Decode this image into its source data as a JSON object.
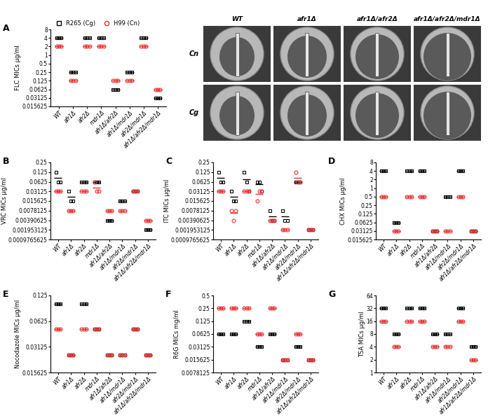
{
  "chart_data": [
    {
      "panel": "A",
      "type": "scatter",
      "y_label": "FLC MICs µg/ml",
      "log": "y",
      "legend": "upper left",
      "categories": [
        "WT",
        "afr1Δ",
        "afr2Δ",
        "mdr1Δ",
        "afr1Δ/afr2Δ",
        "afr1Δ/mdr1Δ",
        "afr2Δ/mdr1Δ",
        "afr1Δ/afr2Δ/mdr1Δ"
      ],
      "ylim": [
        0.015625,
        8
      ],
      "yticks": [
        0.015625,
        0.03125,
        0.0625,
        0.125,
        0.25,
        0.5,
        1,
        2,
        4,
        8
      ],
      "series": [
        {
          "name": "R265 (Cg)",
          "color": "#000000",
          "marker": "square",
          "values": [
            [
              4,
              4,
              4
            ],
            [
              0.25,
              0.25,
              0.25
            ],
            [
              4,
              4,
              4
            ],
            [
              4,
              4,
              4
            ],
            [
              0.0625,
              0.0625,
              0.0625
            ],
            [
              0.25,
              0.25,
              0.25
            ],
            [
              4,
              4,
              4
            ],
            [
              0.03125,
              0.03125,
              0.03125
            ]
          ]
        },
        {
          "name": "H99 (Cn)",
          "color": "#e8312f",
          "marker": "circle",
          "values": [
            [
              2,
              2,
              2
            ],
            [
              0.125,
              0.125,
              0.125
            ],
            [
              2,
              2,
              2
            ],
            [
              2,
              2,
              2
            ],
            [
              0.125,
              0.125,
              0.125
            ],
            [
              0.125,
              0.125,
              0.125
            ],
            [
              2,
              2,
              2
            ],
            [
              0.0625,
              0.0625,
              0.0625
            ]
          ]
        }
      ]
    },
    {
      "panel": "B",
      "type": "scatter",
      "y_label": "VRC MICs µg/ml",
      "log": "y",
      "categories": [
        "WT",
        "afr1Δ",
        "afr2Δ",
        "mdr1Δ",
        "afr1Δ/afr2Δ",
        "afr1Δ/mdr1Δ",
        "afr2Δ/mdr1Δ",
        "afr1Δ/afr2Δ/mdr1Δ"
      ],
      "ylim": [
        0.0009765625,
        0.25
      ],
      "yticks": [
        0.0009765625,
        0.001953125,
        0.00390625,
        0.0078125,
        0.015625,
        0.03125,
        0.0625,
        0.125,
        0.25
      ],
      "series": [
        {
          "color": "#000000",
          "marker": "square",
          "values": [
            [
              0.125,
              0.0625,
              0.0625
            ],
            [
              0.03125,
              0.015625,
              0.015625
            ],
            [
              0.0625,
              0.0625,
              0.0625
            ],
            [
              0.0625,
              0.0625,
              0.0625
            ],
            [
              0.00390625,
              0.00390625,
              0.00390625
            ],
            [
              0.015625,
              0.015625,
              0.015625
            ],
            [
              0.03125,
              0.03125,
              0.03125
            ],
            [
              0.001953125,
              0.001953125,
              0.001953125
            ]
          ]
        },
        {
          "color": "#e8312f",
          "marker": "circle",
          "values": [
            [
              0.03125,
              0.03125,
              0.03125
            ],
            [
              0.0078125,
              0.0078125,
              0.0078125
            ],
            [
              0.03125,
              0.03125,
              0.03125
            ],
            [
              0.0625,
              0.03125,
              0.03125
            ],
            [
              0.0078125,
              0.0078125,
              0.0078125
            ],
            [
              0.0078125,
              0.0078125,
              0.0078125
            ],
            [
              0.03125,
              0.03125,
              0.03125
            ],
            [
              0.00390625,
              0.00390625,
              0.00390625
            ]
          ]
        }
      ]
    },
    {
      "panel": "C",
      "type": "scatter",
      "y_label": "ITC MICs µg/ml",
      "log": "y",
      "categories": [
        "WT",
        "afr1Δ",
        "afr2Δ",
        "mdr1Δ",
        "afr1Δ/afr2Δ",
        "afr1Δ/mdr1Δ",
        "afr2Δ/mdr1Δ",
        "afr1Δ/afr2Δ/mdr1Δ"
      ],
      "ylim": [
        0.0009765625,
        0.25
      ],
      "yticks": [
        0.0009765625,
        0.001953125,
        0.00390625,
        0.0078125,
        0.015625,
        0.03125,
        0.0625,
        0.125,
        0.25
      ],
      "series": [
        {
          "color": "#000000",
          "marker": "square",
          "values": [
            [
              0.125,
              0.0625,
              0.0625
            ],
            [
              0.03125,
              0.015625,
              0.015625
            ],
            [
              0.125,
              0.0625,
              0.03125
            ],
            [
              0.0625,
              0.0625,
              0.03125
            ],
            [
              0.0078125,
              0.00390625,
              0.00390625
            ],
            [
              0.0078125,
              0.00390625,
              0.00390625
            ],
            [
              0.0625,
              0.0625,
              0.0625
            ],
            [
              0.001953125,
              0.001953125,
              0.001953125
            ]
          ]
        },
        {
          "color": "#e8312f",
          "marker": "circle",
          "values": [
            [
              0.03125,
              0.03125,
              0.03125
            ],
            [
              0.0078125,
              0.00390625,
              0.0078125
            ],
            [
              0.03125,
              0.03125,
              0.03125
            ],
            [
              0.015625,
              0.03125,
              0.03125
            ],
            [
              0.00390625,
              0.00390625,
              0.00390625
            ],
            [
              0.001953125,
              0.001953125,
              0.001953125
            ],
            [
              0.125,
              0.0625,
              0.0625
            ],
            [
              0.001953125,
              0.001953125,
              0.001953125
            ]
          ]
        }
      ]
    },
    {
      "panel": "D",
      "type": "scatter",
      "y_label": "CHX MICs µg/ml",
      "log": "y",
      "categories": [
        "WT",
        "afr1Δ",
        "afr2Δ",
        "mdr1Δ",
        "afr1Δ/afr2Δ",
        "afr1Δ/mdr1Δ",
        "afr2Δ/mdr1Δ",
        "afr1Δ/afr2Δ/mdr1Δ"
      ],
      "ylim": [
        0.015625,
        8
      ],
      "yticks": [
        0.015625,
        0.03125,
        0.0625,
        0.125,
        0.25,
        0.5,
        1,
        2,
        4,
        8
      ],
      "series": [
        {
          "color": "#000000",
          "marker": "square",
          "values": [
            [
              4,
              4,
              4
            ],
            [
              0.0625,
              0.0625,
              0.0625
            ],
            [
              4,
              4,
              4
            ],
            [
              4,
              4,
              4
            ],
            [
              0.03125,
              0.03125,
              0.03125
            ],
            [
              0.5,
              0.5,
              0.5
            ],
            [
              4,
              4,
              4
            ],
            [
              0.03125,
              0.03125,
              0.03125
            ]
          ]
        },
        {
          "color": "#e8312f",
          "marker": "circle",
          "values": [
            [
              0.5,
              0.5,
              0.5
            ],
            [
              0.03125,
              0.03125,
              0.03125
            ],
            [
              0.5,
              0.5,
              0.5
            ],
            [
              0.5,
              0.5,
              0.5
            ],
            [
              0.03125,
              0.03125,
              0.03125
            ],
            [
              0.03125,
              0.03125,
              0.03125
            ],
            [
              0.5,
              0.5,
              0.5
            ],
            [
              0.03125,
              0.03125,
              0.03125
            ]
          ]
        }
      ]
    },
    {
      "panel": "E",
      "type": "scatter",
      "y_label": "Nocodazole MICs µg/ml",
      "log": "y",
      "categories": [
        "WT",
        "afr1Δ",
        "afr2Δ",
        "mdr1Δ",
        "afr1Δ/afr2Δ",
        "afr1Δ/mdr1Δ",
        "afr2Δ/mdr1Δ",
        "afr1Δ/afr2Δ/mdr1Δ"
      ],
      "ylim": [
        0.015625,
        0.125
      ],
      "yticks": [
        0.015625,
        0.03125,
        0.0625,
        0.125
      ],
      "series": [
        {
          "color": "#000000",
          "marker": "square",
          "values": [
            [
              0.1,
              0.1,
              0.1
            ],
            [
              0.025,
              0.025,
              0.025
            ],
            [
              0.1,
              0.1,
              0.1
            ],
            [
              0.05,
              0.05,
              0.05
            ],
            [
              0.025,
              0.025,
              0.025
            ],
            [
              0.025,
              0.025,
              0.025
            ],
            [
              0.05,
              0.05,
              0.05
            ],
            [
              0.025,
              0.025,
              0.025
            ]
          ]
        },
        {
          "color": "#e8312f",
          "marker": "circle",
          "values": [
            [
              0.05,
              0.05,
              0.05
            ],
            [
              0.025,
              0.025,
              0.025
            ],
            [
              0.05,
              0.05,
              0.05
            ],
            [
              0.05,
              0.05,
              0.05
            ],
            [
              0.025,
              0.025,
              0.025
            ],
            [
              0.025,
              0.025,
              0.025
            ],
            [
              0.05,
              0.05,
              0.05
            ],
            [
              0.025,
              0.025,
              0.025
            ]
          ]
        }
      ]
    },
    {
      "panel": "F",
      "type": "scatter",
      "y_label": "R6G MICs mg/ml",
      "log": "y",
      "categories": [
        "WT",
        "afr1Δ",
        "afr2Δ",
        "mdr1Δ",
        "afr1Δ/afr2Δ",
        "afr1Δ/mdr1Δ",
        "afr2Δ/mdr1Δ",
        "afr1Δ/afr2Δ/mdr1Δ"
      ],
      "ylim": [
        0.0078125,
        0.5
      ],
      "yticks": [
        0.0078125,
        0.015625,
        0.03125,
        0.0625,
        0.125,
        0.25,
        0.5
      ],
      "series": [
        {
          "color": "#000000",
          "marker": "square",
          "values": [
            [
              0.0625,
              0.0625,
              0.0625
            ],
            [
              0.0625,
              0.0625,
              0.0625
            ],
            [
              0.125,
              0.125,
              0.125
            ],
            [
              0.03125,
              0.03125,
              0.03125
            ],
            [
              0.0625,
              0.0625,
              0.0625
            ],
            [
              0.015625,
              0.015625,
              0.015625
            ],
            [
              0.03125,
              0.03125,
              0.03125
            ],
            [
              0.015625,
              0.015625,
              0.015625
            ]
          ]
        },
        {
          "color": "#e8312f",
          "marker": "circle",
          "values": [
            [
              0.25,
              0.25,
              0.25
            ],
            [
              0.25,
              0.25,
              0.25
            ],
            [
              0.25,
              0.25,
              0.25
            ],
            [
              0.0625,
              0.0625,
              0.0625
            ],
            [
              0.25,
              0.25,
              0.25
            ],
            [
              0.015625,
              0.015625,
              0.015625
            ],
            [
              0.0625,
              0.0625,
              0.0625
            ],
            [
              0.015625,
              0.015625,
              0.015625
            ]
          ]
        }
      ]
    },
    {
      "panel": "G",
      "type": "scatter",
      "y_label": "TSA MICs µg/ml",
      "log": "y",
      "categories": [
        "WT",
        "afr1Δ",
        "afr2Δ",
        "mdr1Δ",
        "afr1Δ/afr2Δ",
        "afr1Δ/mdr1Δ",
        "afr2Δ/mdr1Δ",
        "afr1Δ/afr2Δ/mdr1Δ"
      ],
      "ylim": [
        1,
        64
      ],
      "yticks": [
        1,
        2,
        4,
        8,
        16,
        32,
        64
      ],
      "series": [
        {
          "color": "#000000",
          "marker": "square",
          "values": [
            [
              32,
              32,
              32
            ],
            [
              8,
              8,
              8
            ],
            [
              32,
              32,
              32
            ],
            [
              32,
              32,
              32
            ],
            [
              8,
              8,
              8
            ],
            [
              8,
              8,
              8
            ],
            [
              32,
              32,
              32
            ],
            [
              4,
              4,
              4
            ]
          ]
        },
        {
          "color": "#e8312f",
          "marker": "circle",
          "values": [
            [
              16,
              16,
              16
            ],
            [
              4,
              4,
              4
            ],
            [
              16,
              16,
              16
            ],
            [
              16,
              16,
              16
            ],
            [
              4,
              4,
              4
            ],
            [
              4,
              4,
              4
            ],
            [
              16,
              16,
              16
            ],
            [
              2,
              2,
              2
            ]
          ]
        }
      ]
    }
  ],
  "plates": {
    "columns": [
      "WT",
      "afr1Δ",
      "afr1Δ/afr2Δ",
      "afr1Δ/afr2Δ/mdr1Δ"
    ],
    "rows": [
      "Cn",
      "Cg"
    ]
  }
}
